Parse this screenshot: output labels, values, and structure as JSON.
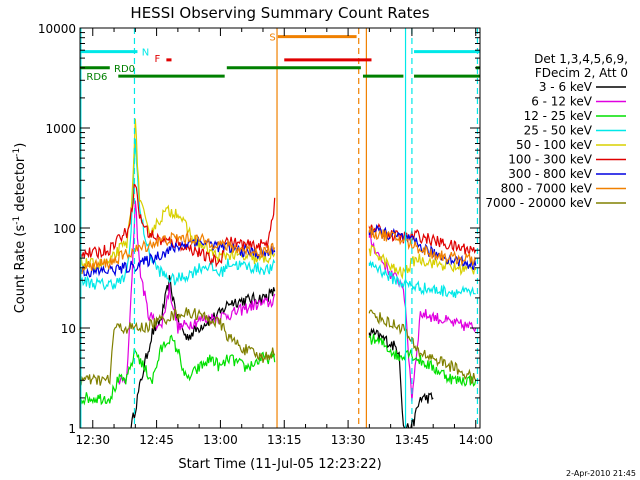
{
  "chart_data": {
    "type": "line",
    "title": "HESSI Observing Summary Count Rates",
    "xlabel": "Start Time (11-Jul-05 12:23:22)",
    "ylabel_main": "Count Rate (s",
    "ylabel_sup1": "-1",
    "ylabel_mid": " detector",
    "ylabel_sup2": "-1",
    "ylabel_end": ")",
    "yscale": "log",
    "ylim": [
      1,
      10000
    ],
    "xlim_min": [
      27,
      121
    ],
    "x_ticks": [
      {
        "m": 30,
        "label": "12:30"
      },
      {
        "m": 45,
        "label": "12:45"
      },
      {
        "m": 60,
        "label": "13:00"
      },
      {
        "m": 75,
        "label": "13:15"
      },
      {
        "m": 90,
        "label": "13:30"
      },
      {
        "m": 105,
        "label": "13:45"
      },
      {
        "m": 120,
        "label": "14:00"
      }
    ],
    "y_ticks": [
      {
        "v": 1,
        "label": "1"
      },
      {
        "v": 10,
        "label": "10"
      },
      {
        "v": 100,
        "label": "100"
      },
      {
        "v": 1000,
        "label": "1000"
      },
      {
        "v": 10000,
        "label": "10000"
      }
    ],
    "legend": {
      "position": "right",
      "header1": "Det 1,3,4,5,6,9,",
      "header2": "FDecim 2, Att 0",
      "entries": [
        {
          "label": "3 - 6 keV",
          "color": "#000000"
        },
        {
          "label": "6 - 12 keV",
          "color": "#e000e0"
        },
        {
          "label": "12 - 25 keV",
          "color": "#00e000"
        },
        {
          "label": "25 - 50 keV",
          "color": "#00e8e8"
        },
        {
          "label": "50 - 100 keV",
          "color": "#d8d000"
        },
        {
          "label": "100 - 300 keV",
          "color": "#e00000"
        },
        {
          "label": "300 - 800 keV",
          "color": "#0000e0"
        },
        {
          "label": "800 - 7000 keV",
          "color": "#f08000"
        },
        {
          "label": "7000 - 20000 keV",
          "color": "#808000"
        }
      ]
    },
    "flag_bars": [
      {
        "label": "N",
        "color": "#00e8e8",
        "segments": [
          [
            27,
            40.5
          ],
          [
            105.5,
            121
          ]
        ],
        "level": 5800,
        "label_m": 41.5,
        "label_v": 5800
      },
      {
        "label": "S",
        "color": "#f08000",
        "segments": [
          [
            73.5,
            92
          ]
        ],
        "level": 8200,
        "label_m": 71.5,
        "label_v": 8200
      },
      {
        "label": "F",
        "color": "#e00000",
        "segments": [
          [
            75,
            95.5
          ],
          [
            47.3,
            48.5
          ]
        ],
        "level": 4800,
        "label_m": 44.5,
        "label_v": 5000
      },
      {
        "label": "RD0",
        "color": "#008000",
        "segments": [
          [
            27,
            34
          ],
          [
            61.5,
            93
          ],
          [
            120,
            121
          ]
        ],
        "level": 4000,
        "label_m": 35,
        "label_v": 4000
      },
      {
        "label": "RD6",
        "color": "#008000",
        "segments": [
          [
            36,
            61
          ],
          [
            93.5,
            103
          ],
          [
            105.5,
            121
          ]
        ],
        "level": 3300,
        "label_m": 28.5,
        "label_v": 3300
      }
    ],
    "vlines": [
      {
        "m": 27.2,
        "color": "#00e8e8",
        "style": "solid"
      },
      {
        "m": 39.8,
        "color": "#00e8e8",
        "style": "dashed"
      },
      {
        "m": 73.3,
        "color": "#f08000",
        "style": "solid"
      },
      {
        "m": 92.5,
        "color": "#f08000",
        "style": "dashed"
      },
      {
        "m": 94.3,
        "color": "#f08000",
        "style": "solid"
      },
      {
        "m": 103.5,
        "color": "#00e8e8",
        "style": "solid"
      },
      {
        "m": 105.0,
        "color": "#00e8e8",
        "style": "dashed"
      },
      {
        "m": 120.4,
        "color": "#00e8e8",
        "style": "dashed"
      }
    ],
    "gap": [
      74,
      94
    ],
    "series": [
      {
        "name": "3 - 6 keV",
        "color": "#000000",
        "points": [
          [
            39,
            1
          ],
          [
            42,
            4
          ],
          [
            44,
            9
          ],
          [
            46,
            12
          ],
          [
            48,
            30
          ],
          [
            50,
            12
          ],
          [
            52,
            8
          ],
          [
            56,
            11
          ],
          [
            60,
            14
          ],
          [
            62,
            18
          ],
          [
            66,
            19
          ],
          [
            70,
            20
          ],
          [
            72,
            22
          ],
          [
            73,
            24
          ],
          [
            95,
            9
          ],
          [
            98,
            8
          ],
          [
            100,
            7
          ],
          [
            102,
            6
          ],
          [
            103,
            1
          ],
          [
            105,
            1
          ],
          [
            107,
            2
          ],
          [
            110,
            2
          ]
        ]
      },
      {
        "name": "6 - 12 keV",
        "color": "#e000e0",
        "points": [
          [
            36,
            3
          ],
          [
            38,
            3
          ],
          [
            39,
            20
          ],
          [
            40,
            200
          ],
          [
            41,
            40
          ],
          [
            43,
            14
          ],
          [
            46,
            10
          ],
          [
            48,
            25
          ],
          [
            50,
            10
          ],
          [
            55,
            12
          ],
          [
            60,
            13
          ],
          [
            63,
            14
          ],
          [
            68,
            17
          ],
          [
            72,
            18
          ],
          [
            73,
            22
          ],
          [
            95,
            80
          ],
          [
            97,
            55
          ],
          [
            100,
            35
          ],
          [
            103,
            27
          ],
          [
            105,
            2
          ],
          [
            107,
            14
          ],
          [
            110,
            13
          ],
          [
            115,
            11
          ],
          [
            120,
            10
          ]
        ]
      },
      {
        "name": "12 - 25 keV",
        "color": "#00e000",
        "points": [
          [
            27,
            2
          ],
          [
            30,
            2
          ],
          [
            34,
            2
          ],
          [
            36,
            3
          ],
          [
            38,
            3
          ],
          [
            40,
            6
          ],
          [
            42,
            4
          ],
          [
            44,
            3
          ],
          [
            46,
            6
          ],
          [
            48,
            8
          ],
          [
            50,
            6
          ],
          [
            52,
            3
          ],
          [
            55,
            4
          ],
          [
            58,
            5
          ],
          [
            60,
            4
          ],
          [
            62,
            5
          ],
          [
            66,
            4
          ],
          [
            70,
            5
          ],
          [
            73,
            5
          ],
          [
            95,
            8
          ],
          [
            98,
            7
          ],
          [
            100,
            6
          ],
          [
            102,
            5
          ],
          [
            104,
            6
          ],
          [
            106,
            5
          ],
          [
            110,
            4
          ],
          [
            115,
            3
          ],
          [
            120,
            3
          ]
        ]
      },
      {
        "name": "25 - 50 keV",
        "color": "#00e8e8",
        "points": [
          [
            27,
            30
          ],
          [
            30,
            28
          ],
          [
            33,
            27
          ],
          [
            35,
            28
          ],
          [
            37,
            30
          ],
          [
            38,
            35
          ],
          [
            39,
            90
          ],
          [
            40,
            800
          ],
          [
            41,
            150
          ],
          [
            43,
            60
          ],
          [
            45,
            40
          ],
          [
            47,
            33
          ],
          [
            49,
            30
          ],
          [
            51,
            32
          ],
          [
            53,
            35
          ],
          [
            55,
            40
          ],
          [
            57,
            42
          ],
          [
            60,
            35
          ],
          [
            62,
            45
          ],
          [
            65,
            42
          ],
          [
            68,
            40
          ],
          [
            72,
            38
          ],
          [
            73,
            45
          ],
          [
            95,
            45
          ],
          [
            97,
            40
          ],
          [
            100,
            32
          ],
          [
            103,
            28
          ],
          [
            106,
            26
          ],
          [
            110,
            24
          ],
          [
            115,
            23
          ],
          [
            120,
            22
          ]
        ]
      },
      {
        "name": "50 - 100 keV",
        "color": "#d8d000",
        "points": [
          [
            27,
            45
          ],
          [
            30,
            43
          ],
          [
            34,
            45
          ],
          [
            36,
            60
          ],
          [
            38,
            70
          ],
          [
            39,
            150
          ],
          [
            40,
            1100
          ],
          [
            41,
            200
          ],
          [
            43,
            90
          ],
          [
            45,
            110
          ],
          [
            47,
            145
          ],
          [
            50,
            145
          ],
          [
            52,
            100
          ],
          [
            54,
            75
          ],
          [
            57,
            60
          ],
          [
            60,
            50
          ],
          [
            62,
            55
          ],
          [
            66,
            50
          ],
          [
            70,
            48
          ],
          [
            73,
            55
          ],
          [
            95,
            60
          ],
          [
            97,
            55
          ],
          [
            100,
            40
          ],
          [
            103,
            35
          ],
          [
            106,
            50
          ],
          [
            110,
            45
          ],
          [
            115,
            40
          ],
          [
            120,
            38
          ]
        ]
      },
      {
        "name": "100 - 300 keV",
        "color": "#e00000",
        "points": [
          [
            27,
            58
          ],
          [
            30,
            55
          ],
          [
            33,
            60
          ],
          [
            34,
            62
          ],
          [
            36,
            80
          ],
          [
            38,
            90
          ],
          [
            39,
            140
          ],
          [
            40,
            300
          ],
          [
            41,
            130
          ],
          [
            43,
            90
          ],
          [
            46,
            75
          ],
          [
            50,
            70
          ],
          [
            54,
            60
          ],
          [
            57,
            50
          ],
          [
            60,
            45
          ],
          [
            61,
            75
          ],
          [
            64,
            70
          ],
          [
            68,
            65
          ],
          [
            71,
            70
          ],
          [
            73,
            200
          ],
          [
            95,
            100
          ],
          [
            97,
            95
          ],
          [
            100,
            85
          ],
          [
            103,
            80
          ],
          [
            106,
            85
          ],
          [
            110,
            75
          ],
          [
            115,
            65
          ],
          [
            120,
            60
          ]
        ]
      },
      {
        "name": "300 - 800 keV",
        "color": "#0000e0",
        "points": [
          [
            27,
            38
          ],
          [
            30,
            36
          ],
          [
            34,
            38
          ],
          [
            38,
            40
          ],
          [
            42,
            45
          ],
          [
            46,
            55
          ],
          [
            50,
            65
          ],
          [
            54,
            75
          ],
          [
            57,
            70
          ],
          [
            60,
            65
          ],
          [
            63,
            62
          ],
          [
            66,
            58
          ],
          [
            70,
            55
          ],
          [
            73,
            60
          ],
          [
            95,
            95
          ],
          [
            97,
            92
          ],
          [
            100,
            85
          ],
          [
            103,
            80
          ],
          [
            106,
            70
          ],
          [
            110,
            55
          ],
          [
            115,
            48
          ],
          [
            120,
            42
          ]
        ]
      },
      {
        "name": "800 - 7000 keV",
        "color": "#f08000",
        "points": [
          [
            27,
            40
          ],
          [
            30,
            42
          ],
          [
            34,
            45
          ],
          [
            38,
            55
          ],
          [
            42,
            65
          ],
          [
            46,
            75
          ],
          [
            50,
            80
          ],
          [
            54,
            78
          ],
          [
            58,
            72
          ],
          [
            62,
            65
          ],
          [
            66,
            60
          ],
          [
            70,
            58
          ],
          [
            73,
            65
          ],
          [
            95,
            90
          ],
          [
            97,
            88
          ],
          [
            100,
            82
          ],
          [
            103,
            75
          ],
          [
            106,
            65
          ],
          [
            110,
            55
          ],
          [
            115,
            50
          ],
          [
            120,
            48
          ]
        ]
      },
      {
        "name": "7000 - 20000 keV",
        "color": "#808000",
        "points": [
          [
            27,
            3
          ],
          [
            30,
            3
          ],
          [
            34,
            3
          ],
          [
            35,
            10
          ],
          [
            38,
            10
          ],
          [
            42,
            10
          ],
          [
            46,
            12
          ],
          [
            50,
            14
          ],
          [
            54,
            14
          ],
          [
            58,
            12
          ],
          [
            60,
            11
          ],
          [
            62,
            8
          ],
          [
            66,
            6
          ],
          [
            70,
            5
          ],
          [
            73,
            6
          ],
          [
            95,
            14
          ],
          [
            97,
            13
          ],
          [
            100,
            11
          ],
          [
            103,
            10
          ],
          [
            106,
            6
          ],
          [
            110,
            5
          ],
          [
            115,
            4
          ],
          [
            120,
            3
          ]
        ]
      }
    ]
  },
  "footer_date": "2-Apr-2010 21:45"
}
